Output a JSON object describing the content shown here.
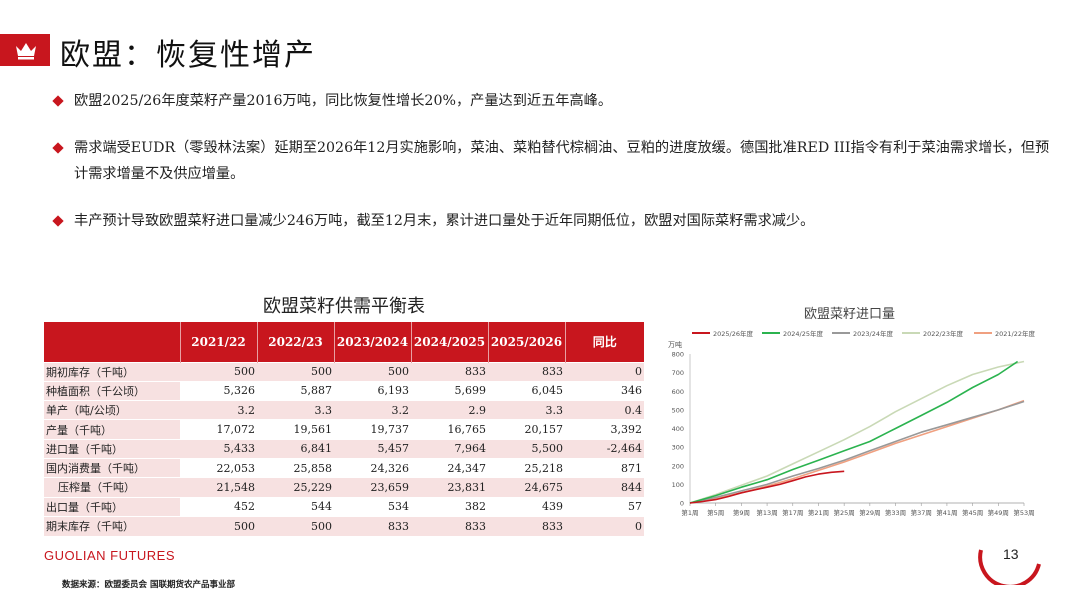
{
  "header": {
    "title": "欧盟：恢复性增产"
  },
  "bullets": [
    "欧盟2025/26年度菜籽产量2016万吨，同比恢复性增长20%，产量达到近五年高峰。",
    "需求端受EUDR（零毁林法案）延期至2026年12月实施影响，菜油、菜粕替代棕榈油、豆粕的进度放缓。德国批准RED III指令有利于菜油需求增长，但预计需求增量不及供应增量。",
    "丰产预计导致欧盟菜籽进口量减少246万吨，截至12月末，累计进口量处于近年同期低位，欧盟对国际菜籽需求减少。"
  ],
  "table": {
    "title": "欧盟菜籽供需平衡表",
    "headers": [
      "",
      "2021/22",
      "2022/23",
      "2023/2024",
      "2024/2025",
      "2025/2026",
      "同比"
    ],
    "rows": [
      [
        "期初库存（千吨）",
        "500",
        "500",
        "500",
        "833",
        "833",
        "0"
      ],
      [
        "种植面积（千公顷）",
        "5,326",
        "5,887",
        "6,193",
        "5,699",
        "6,045",
        "346"
      ],
      [
        "单产（吨/公顷）",
        "3.2",
        "3.3",
        "3.2",
        "2.9",
        "3.3",
        "0.4"
      ],
      [
        "产量（千吨）",
        "17,072",
        "19,561",
        "19,737",
        "16,765",
        "20,157",
        "3,392"
      ],
      [
        "进口量（千吨）",
        "5,433",
        "6,841",
        "5,457",
        "7,964",
        "5,500",
        "-2,464"
      ],
      [
        "国内消费量（千吨）",
        "22,053",
        "25,858",
        "24,326",
        "24,347",
        "25,218",
        "871"
      ],
      [
        "  压榨量（千吨）",
        "21,548",
        "25,229",
        "23,659",
        "23,831",
        "24,675",
        "844"
      ],
      [
        "出口量（千吨）",
        "452",
        "544",
        "534",
        "382",
        "439",
        "57"
      ],
      [
        "期末库存（千吨）",
        "500",
        "500",
        "833",
        "833",
        "833",
        "0"
      ]
    ]
  },
  "chart_data": {
    "type": "line",
    "title": "欧盟菜籽进口量",
    "ylabel": "万吨",
    "ylim": [
      0,
      800
    ],
    "yticks": [
      "0",
      "100",
      "200",
      "300",
      "400",
      "500",
      "600",
      "700",
      "800"
    ],
    "xticks": [
      "第1周",
      "第5周",
      "第9周",
      "第13周",
      "第17周",
      "第21周",
      "第25周",
      "第29周",
      "第33周",
      "第37周",
      "第41周",
      "第45周",
      "第49周",
      "第53周"
    ],
    "legend": "top",
    "series": [
      {
        "name": "2025/26年度",
        "color": "#c8161e",
        "x": [
          1,
          3,
          5,
          7,
          9,
          11,
          13,
          15,
          17,
          19,
          21,
          23,
          25
        ],
        "values": [
          0,
          8,
          18,
          35,
          55,
          70,
          85,
          100,
          120,
          140,
          155,
          165,
          170
        ]
      },
      {
        "name": "2024/25年度",
        "color": "#2bb34f",
        "x": [
          1,
          5,
          9,
          13,
          17,
          21,
          25,
          29,
          33,
          37,
          41,
          45,
          49,
          52
        ],
        "values": [
          0,
          40,
          85,
          125,
          180,
          230,
          280,
          330,
          400,
          470,
          540,
          620,
          690,
          760
        ]
      },
      {
        "name": "2023/24年度",
        "color": "#999999",
        "x": [
          1,
          5,
          9,
          13,
          17,
          21,
          25,
          29,
          33,
          37,
          41,
          45,
          49,
          53
        ],
        "values": [
          0,
          30,
          65,
          100,
          145,
          185,
          230,
          280,
          330,
          380,
          420,
          460,
          500,
          545
        ]
      },
      {
        "name": "2022/23年度",
        "color": "#c9d9b6",
        "x": [
          1,
          5,
          9,
          13,
          17,
          21,
          25,
          29,
          33,
          37,
          41,
          45,
          49,
          53
        ],
        "values": [
          0,
          45,
          95,
          145,
          210,
          275,
          340,
          410,
          490,
          560,
          630,
          690,
          730,
          760
        ]
      },
      {
        "name": "2021/22年度",
        "color": "#f0a080",
        "x": [
          1,
          5,
          9,
          13,
          17,
          21,
          25,
          29,
          33,
          37,
          41,
          45,
          49,
          53
        ],
        "values": [
          0,
          25,
          55,
          90,
          130,
          175,
          220,
          270,
          320,
          365,
          410,
          455,
          500,
          550
        ]
      }
    ]
  },
  "footer": {
    "logo": "GUOLIAN FUTURES",
    "source": "数据来源：欧盟委员会 国联期货农产品事业部",
    "page": "13"
  }
}
